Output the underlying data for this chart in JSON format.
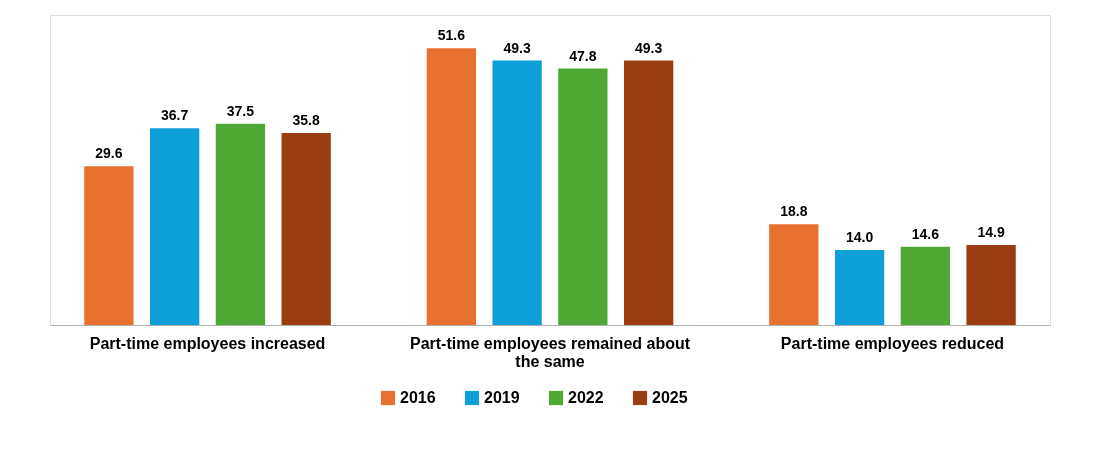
{
  "chart_data": {
    "type": "bar",
    "categories": [
      "Part-time employees increased",
      "Part-time employees remained about the same",
      "Part-time employees reduced"
    ],
    "series": [
      {
        "name": "2016",
        "color": "#e8712f",
        "values": [
          29.6,
          51.6,
          18.8
        ],
        "value_labels": [
          "29.6",
          "51.6",
          "18.8"
        ]
      },
      {
        "name": "2019",
        "color": "#0f9fd8",
        "values": [
          36.7,
          49.3,
          14.0
        ],
        "value_labels": [
          "36.7",
          "49.3",
          "14.0"
        ]
      },
      {
        "name": "2022",
        "color": "#4ea833",
        "values": [
          37.5,
          47.8,
          14.6
        ],
        "value_labels": [
          "37.5",
          "47.8",
          "14.6"
        ]
      },
      {
        "name": "2025",
        "color": "#9a3e12",
        "values": [
          35.8,
          49.3,
          14.9
        ],
        "value_labels": [
          "35.8",
          "49.3",
          "14.9"
        ]
      }
    ],
    "legend": "bottom",
    "grid": false
  }
}
